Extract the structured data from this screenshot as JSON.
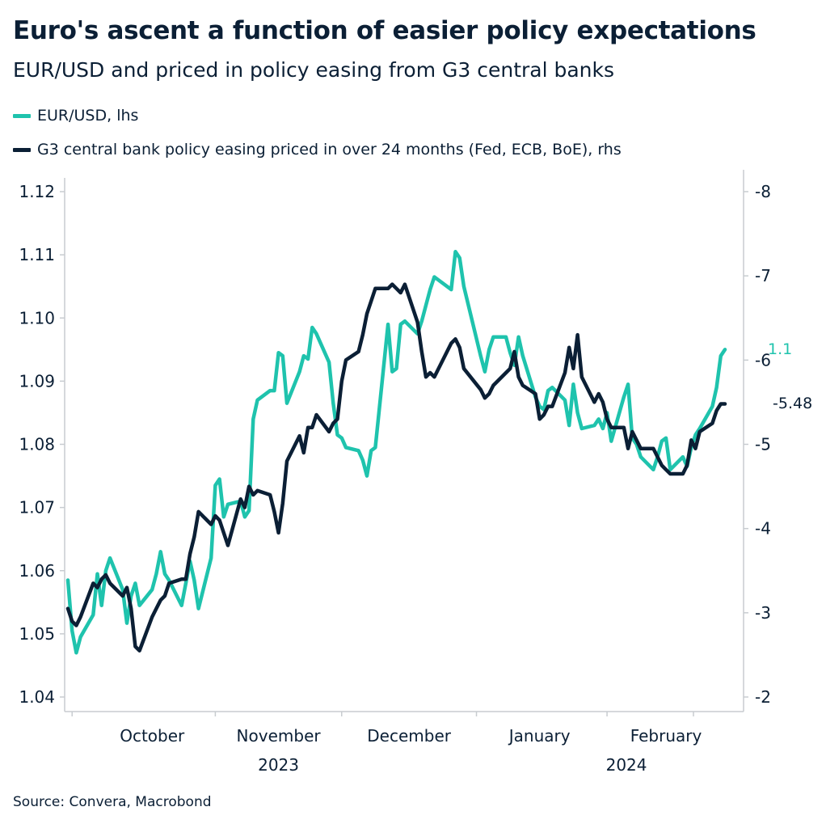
{
  "title": "Euro's ascent a function of easier policy expectations",
  "subtitle": "EUR/USD and priced in policy easing from G3 central banks",
  "source": "Source: Convera, Macrobond",
  "colors": {
    "eurusd": "#1fc3ad",
    "g3": "#0b1f35",
    "text": "#0b1f35",
    "axis": "#c8ccd0"
  },
  "chart_data": {
    "type": "line",
    "legend": [
      {
        "label": "EUR/USD, lhs",
        "color": "#1fc3ad"
      },
      {
        "label": "G3 central bank policy easing priced in over 24 months (Fed, ECB, BoE), rhs",
        "color": "#0b1f35"
      }
    ],
    "x_labels": {
      "months": [
        "October",
        "November",
        "December",
        "January",
        "February"
      ],
      "years": [
        "2023",
        "2024"
      ]
    },
    "left_axis": {
      "ticks": [
        "1.04",
        "1.05",
        "1.06",
        "1.07",
        "1.08",
        "1.09",
        "1.10",
        "1.11",
        "1.12"
      ],
      "range": [
        1.04,
        1.12
      ]
    },
    "right_axis": {
      "ticks": [
        "-2",
        "-3",
        "-4",
        "-5",
        "-6",
        "-7",
        "-8"
      ],
      "range": [
        -2,
        -8
      ]
    },
    "end_labels": {
      "eurusd": "1.1",
      "g3": "-5.48"
    },
    "grid": false,
    "date_range": [
      "2023-09-26",
      "2024-02-29"
    ],
    "series": [
      {
        "name": "EUR/USD, lhs",
        "axis": "left",
        "dates": [
          "2023-09-26",
          "2023-09-27",
          "2023-09-28",
          "2023-09-29",
          "2023-10-02",
          "2023-10-03",
          "2023-10-04",
          "2023-10-05",
          "2023-10-06",
          "2023-10-09",
          "2023-10-10",
          "2023-10-11",
          "2023-10-12",
          "2023-10-13",
          "2023-10-16",
          "2023-10-17",
          "2023-10-18",
          "2023-10-19",
          "2023-10-20",
          "2023-10-23",
          "2023-10-24",
          "2023-10-25",
          "2023-10-26",
          "2023-10-27",
          "2023-10-30",
          "2023-10-31",
          "2023-11-01",
          "2023-11-02",
          "2023-11-03",
          "2023-11-06",
          "2023-11-07",
          "2023-11-08",
          "2023-11-09",
          "2023-11-10",
          "2023-11-13",
          "2023-11-14",
          "2023-11-15",
          "2023-11-16",
          "2023-11-17",
          "2023-11-20",
          "2023-11-21",
          "2023-11-22",
          "2023-11-23",
          "2023-11-24",
          "2023-11-27",
          "2023-11-28",
          "2023-11-29",
          "2023-11-30",
          "2023-12-01",
          "2023-12-04",
          "2023-12-05",
          "2023-12-06",
          "2023-12-07",
          "2023-12-08",
          "2023-12-11",
          "2023-12-12",
          "2023-12-13",
          "2023-12-14",
          "2023-12-15",
          "2023-12-18",
          "2023-12-19",
          "2023-12-20",
          "2023-12-21",
          "2023-12-22",
          "2023-12-26",
          "2023-12-27",
          "2023-12-28",
          "2023-12-29",
          "2024-01-02",
          "2024-01-03",
          "2024-01-04",
          "2024-01-05",
          "2024-01-08",
          "2024-01-09",
          "2024-01-10",
          "2024-01-11",
          "2024-01-12",
          "2024-01-15",
          "2024-01-16",
          "2024-01-17",
          "2024-01-18",
          "2024-01-19",
          "2024-01-22",
          "2024-01-23",
          "2024-01-24",
          "2024-01-25",
          "2024-01-26",
          "2024-01-29",
          "2024-01-30",
          "2024-01-31",
          "2024-02-01",
          "2024-02-02",
          "2024-02-05",
          "2024-02-06",
          "2024-02-07",
          "2024-02-08",
          "2024-02-09",
          "2024-02-12",
          "2024-02-13",
          "2024-02-14",
          "2024-02-15",
          "2024-02-16",
          "2024-02-19",
          "2024-02-20",
          "2024-02-21",
          "2024-02-22",
          "2024-02-23",
          "2024-02-26",
          "2024-02-27",
          "2024-02-28",
          "2024-02-29"
        ],
        "values": [
          1.0585,
          1.0505,
          1.047,
          1.0495,
          1.053,
          1.0595,
          1.0545,
          1.06,
          1.062,
          1.057,
          1.0517,
          1.056,
          1.058,
          1.0545,
          1.057,
          1.0595,
          1.063,
          1.0595,
          1.0585,
          1.0545,
          1.058,
          1.0615,
          1.0585,
          1.054,
          1.062,
          1.0735,
          1.0745,
          1.0685,
          1.0705,
          1.071,
          1.0685,
          1.0695,
          1.084,
          1.087,
          1.0885,
          1.0885,
          1.0945,
          1.094,
          1.0865,
          1.0915,
          1.094,
          1.0935,
          1.0985,
          1.0975,
          1.093,
          1.0865,
          1.0815,
          1.081,
          1.0795,
          1.079,
          1.0775,
          1.075,
          1.079,
          1.0795,
          1.099,
          1.0915,
          1.092,
          1.099,
          1.0995,
          1.0975,
          1.0995,
          1.102,
          1.1045,
          1.1065,
          1.1045,
          1.1105,
          1.1095,
          1.105,
          1.094,
          1.0915,
          1.095,
          1.097,
          1.097,
          1.0945,
          1.0925,
          1.097,
          1.094,
          1.0875,
          1.086,
          1.0855,
          1.0885,
          1.089,
          1.087,
          1.083,
          1.0895,
          1.085,
          1.0825,
          1.083,
          1.084,
          1.0825,
          1.085,
          1.0805,
          1.0875,
          1.0895,
          1.081,
          1.08,
          1.078,
          1.076,
          1.078,
          1.0805,
          1.081,
          1.076,
          1.078,
          1.0765,
          1.0795,
          1.0815,
          1.0825,
          1.086,
          1.089,
          1.094,
          1.095
        ],
        "color": "#1fc3ad"
      },
      {
        "name": "G3 central bank policy easing priced in over 24 months (Fed, ECB, BoE), rhs",
        "axis": "right",
        "dates": [
          "2023-09-26",
          "2023-09-27",
          "2023-09-28",
          "2023-09-29",
          "2023-10-02",
          "2023-10-03",
          "2023-10-04",
          "2023-10-05",
          "2023-10-06",
          "2023-10-09",
          "2023-10-10",
          "2023-10-11",
          "2023-10-12",
          "2023-10-13",
          "2023-10-16",
          "2023-10-17",
          "2023-10-18",
          "2023-10-19",
          "2023-10-20",
          "2023-10-23",
          "2023-10-24",
          "2023-10-25",
          "2023-10-26",
          "2023-10-27",
          "2023-10-30",
          "2023-10-31",
          "2023-11-01",
          "2023-11-02",
          "2023-11-03",
          "2023-11-06",
          "2023-11-07",
          "2023-11-08",
          "2023-11-09",
          "2023-11-10",
          "2023-11-13",
          "2023-11-14",
          "2023-11-15",
          "2023-11-16",
          "2023-11-17",
          "2023-11-20",
          "2023-11-21",
          "2023-11-22",
          "2023-11-23",
          "2023-11-24",
          "2023-11-27",
          "2023-11-28",
          "2023-11-29",
          "2023-11-30",
          "2023-12-01",
          "2023-12-04",
          "2023-12-05",
          "2023-12-06",
          "2023-12-07",
          "2023-12-08",
          "2023-12-11",
          "2023-12-12",
          "2023-12-13",
          "2023-12-14",
          "2023-12-15",
          "2023-12-18",
          "2023-12-19",
          "2023-12-20",
          "2023-12-21",
          "2023-12-22",
          "2023-12-26",
          "2023-12-27",
          "2023-12-28",
          "2023-12-29",
          "2024-01-02",
          "2024-01-03",
          "2024-01-04",
          "2024-01-05",
          "2024-01-08",
          "2024-01-09",
          "2024-01-10",
          "2024-01-11",
          "2024-01-12",
          "2024-01-15",
          "2024-01-16",
          "2024-01-17",
          "2024-01-18",
          "2024-01-19",
          "2024-01-22",
          "2024-01-23",
          "2024-01-24",
          "2024-01-25",
          "2024-01-26",
          "2024-01-29",
          "2024-01-30",
          "2024-01-31",
          "2024-02-01",
          "2024-02-02",
          "2024-02-05",
          "2024-02-06",
          "2024-02-07",
          "2024-02-08",
          "2024-02-09",
          "2024-02-12",
          "2024-02-13",
          "2024-02-14",
          "2024-02-15",
          "2024-02-16",
          "2024-02-19",
          "2024-02-20",
          "2024-02-21",
          "2024-02-22",
          "2024-02-23",
          "2024-02-26",
          "2024-02-27",
          "2024-02-28",
          "2024-02-29"
        ],
        "values": [
          -3.05,
          -2.9,
          -2.85,
          -2.95,
          -3.35,
          -3.3,
          -3.4,
          -3.45,
          -3.35,
          -3.2,
          -3.3,
          -3.05,
          -2.6,
          -2.55,
          -2.95,
          -3.05,
          -3.15,
          -3.2,
          -3.35,
          -3.4,
          -3.4,
          -3.7,
          -3.9,
          -4.2,
          -4.05,
          -4.15,
          -4.1,
          -3.95,
          -3.8,
          -4.35,
          -4.25,
          -4.5,
          -4.4,
          -4.45,
          -4.4,
          -4.2,
          -3.95,
          -4.3,
          -4.8,
          -5.1,
          -4.9,
          -5.2,
          -5.2,
          -5.35,
          -5.15,
          -5.25,
          -5.3,
          -5.75,
          -6.0,
          -6.1,
          -6.3,
          -6.55,
          -6.7,
          -6.85,
          -6.85,
          -6.9,
          -6.85,
          -6.8,
          -6.9,
          -6.45,
          -6.1,
          -5.8,
          -5.85,
          -5.8,
          -6.2,
          -6.25,
          -6.15,
          -5.9,
          -5.65,
          -5.55,
          -5.6,
          -5.7,
          -5.85,
          -5.9,
          -6.1,
          -5.8,
          -5.7,
          -5.6,
          -5.3,
          -5.35,
          -5.45,
          -5.45,
          -5.85,
          -6.15,
          -5.9,
          -6.3,
          -5.8,
          -5.5,
          -5.6,
          -5.5,
          -5.3,
          -5.2,
          -5.2,
          -4.95,
          -5.15,
          -5.05,
          -4.95,
          -4.95,
          -4.85,
          -4.75,
          -4.7,
          -4.65,
          -4.65,
          -4.75,
          -5.05,
          -4.95,
          -5.15,
          -5.25,
          -5.4,
          -5.48,
          -5.48
        ],
        "color": "#0b1f35"
      }
    ]
  }
}
